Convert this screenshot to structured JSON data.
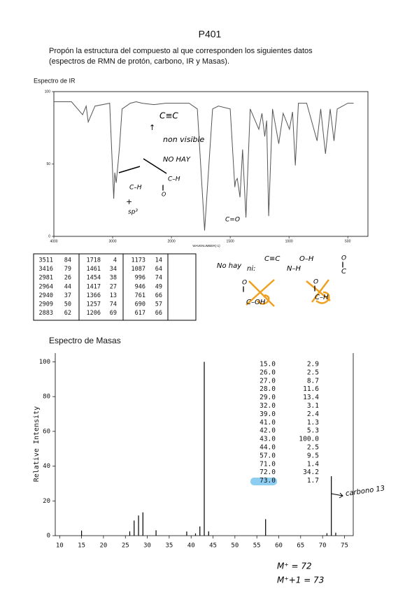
{
  "header": {
    "title": "P401",
    "instructions": [
      "Propón la estructura del compuesto al que corresponden los siguientes datos",
      "(espectros de RMN de protón, carbono, IR y Masas)."
    ]
  },
  "ir_label": "Espectro de IR",
  "ir_peaks": {
    "rows": [
      [
        3511,
        84,
        1718,
        4,
        1173,
        14
      ],
      [
        3416,
        79,
        1461,
        34,
        1087,
        64
      ],
      [
        2981,
        26,
        1454,
        38,
        996,
        74
      ],
      [
        2964,
        44,
        1417,
        27,
        946,
        49
      ],
      [
        2940,
        37,
        1366,
        13,
        761,
        66
      ],
      [
        2909,
        50,
        1257,
        74,
        690,
        57
      ],
      [
        2883,
        62,
        1206,
        69,
        617,
        66
      ]
    ]
  },
  "ir_notes": [
    "C≡C",
    "↑",
    "non visible",
    "NO HAY",
    "C–H",
    "‖",
    "O",
    "C–H",
    "+",
    "sp³",
    "C=O",
    "No hay",
    "C≡C",
    "O–H",
    "ni:",
    "N–H",
    "O",
    "‖",
    "C",
    "O",
    "‖",
    "C–OH",
    "O",
    "‖",
    "C–H"
  ],
  "ms_label": "Espectro de Masas",
  "ms_notes": [
    "carbono 13",
    "M⁺ = 72",
    "M⁺+1 = 73"
  ],
  "chart_data": [
    {
      "type": "line",
      "color": "#555555",
      "xlabel": "WAVENUMBER(-1)",
      "x_scale_change": 2000,
      "x": [
        4000,
        3700,
        3511,
        3450,
        3416,
        3300,
        3050,
        2981,
        2964,
        2940,
        2909,
        2883,
        2840,
        2700,
        2600,
        2500,
        2300,
        2100,
        2000,
        1850,
        1780,
        1718,
        1650,
        1600,
        1500,
        1461,
        1454,
        1440,
        1417,
        1395,
        1366,
        1330,
        1257,
        1230,
        1206,
        1190,
        1173,
        1140,
        1087,
        1050,
        996,
        970,
        946,
        920,
        850,
        761,
        730,
        690,
        650,
        617,
        590,
        500,
        450
      ],
      "values": [
        93,
        93,
        84,
        90,
        79,
        90,
        92,
        26,
        44,
        37,
        50,
        62,
        88,
        92,
        93,
        92,
        91,
        92,
        92,
        92,
        88,
        4,
        88,
        90,
        88,
        34,
        38,
        40,
        27,
        60,
        13,
        88,
        74,
        85,
        69,
        80,
        14,
        88,
        64,
        85,
        74,
        86,
        49,
        92,
        92,
        66,
        88,
        57,
        88,
        66,
        88,
        92,
        92
      ],
      "xlim": [
        4000,
        400
      ],
      "ylim": [
        0,
        100
      ],
      "xticks": [
        4000,
        3000,
        2000,
        1500,
        1000,
        500
      ],
      "yticks": [
        0,
        50,
        100
      ]
    },
    {
      "type": "bar",
      "color": "#000000",
      "ylabel": "Relative Intensity",
      "x": [
        15,
        26,
        27,
        28,
        29,
        32,
        39,
        41,
        42,
        43,
        44,
        57,
        71,
        72,
        73
      ],
      "x_labels": [
        "15.0",
        "26.0",
        "27.0",
        "28.0",
        "29.0",
        "32.0",
        "39.0",
        "41.0",
        "42.0",
        "43.0",
        "44.0",
        "57.0",
        "71.0",
        "72.0",
        "73.0"
      ],
      "values": [
        2.9,
        2.5,
        8.7,
        11.6,
        13.4,
        3.1,
        2.4,
        1.3,
        5.3,
        100,
        2.5,
        9.5,
        1.4,
        34.2,
        1.7
      ],
      "value_labels": [
        "2.9",
        "2.5",
        "8.7",
        "11.6",
        "13.4",
        "3.1",
        "2.4",
        "1.3",
        "5.3",
        "100.0",
        "2.5",
        "9.5",
        "1.4",
        "34.2",
        "1.7"
      ],
      "xlim": [
        9,
        77
      ],
      "ylim": [
        0,
        105
      ],
      "xticks": [
        10,
        15,
        20,
        25,
        30,
        35,
        40,
        45,
        50,
        55,
        60,
        65,
        70,
        75
      ],
      "yticks": [
        0,
        20,
        40,
        60,
        80,
        100
      ]
    }
  ]
}
